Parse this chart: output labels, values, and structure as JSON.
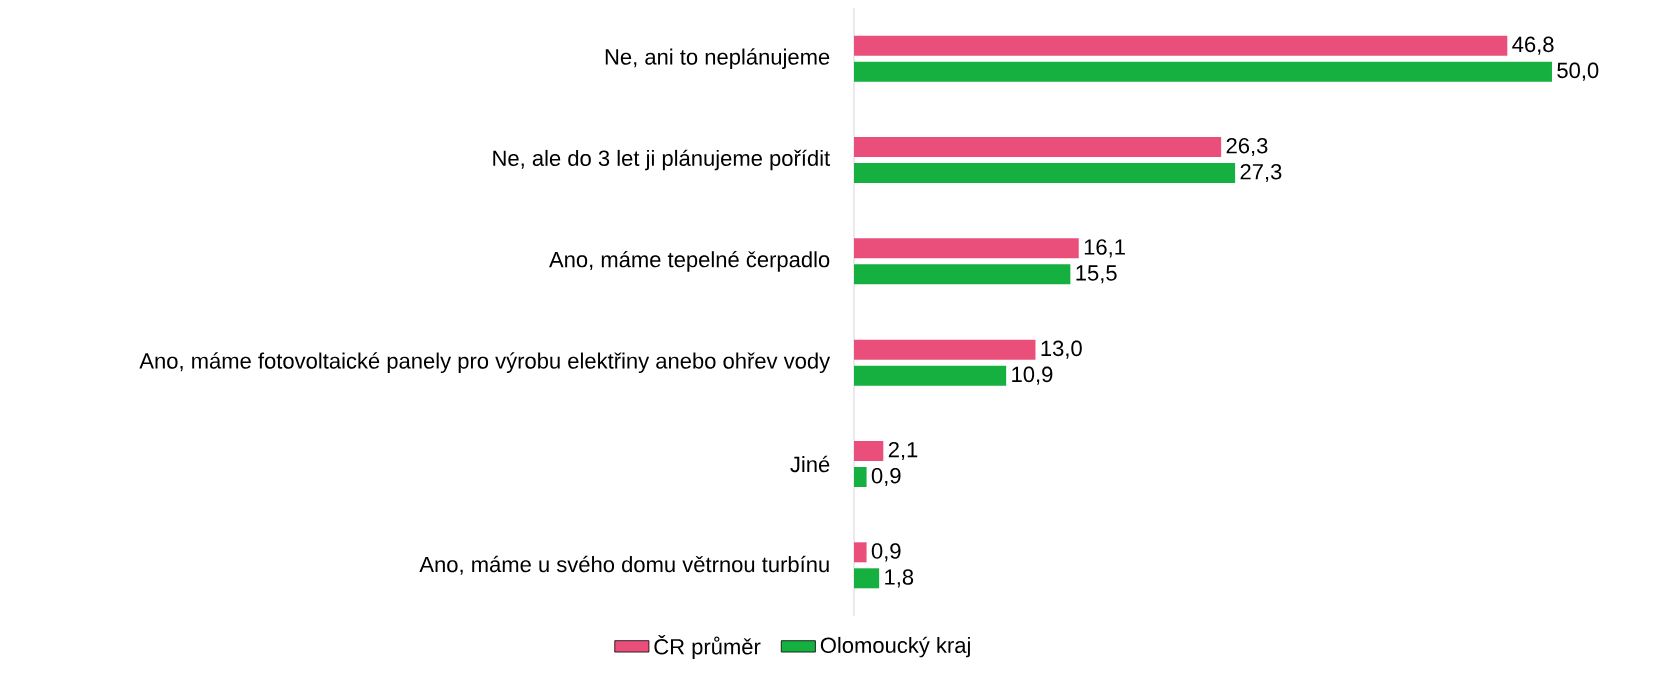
{
  "chart_data": {
    "type": "bar",
    "orientation": "horizontal",
    "categories": [
      "Ne, ani to neplánujeme",
      "Ne, ale do 3 let ji plánujeme pořídit",
      "Ano, máme tepelné čerpadlo",
      "Ano, máme fotovoltaické panely pro výrobu elektřiny anebo ohřev vody",
      "Jiné",
      "Ano, máme u svého domu větrnou turbínu"
    ],
    "series": [
      {
        "name": "ČR průměr",
        "color": "#ea4f7c",
        "values": [
          46.8,
          26.3,
          16.1,
          13.0,
          2.1,
          0.9
        ],
        "value_labels": [
          "46,8",
          "26,3",
          "16,1",
          "13,0",
          "2,1",
          "0,9"
        ]
      },
      {
        "name": "Olomoucký kraj",
        "color": "#15b03f",
        "values": [
          50.0,
          27.3,
          15.5,
          10.9,
          0.9,
          1.8
        ],
        "value_labels": [
          "50,0",
          "27,3",
          "15,5",
          "10,9",
          "0,9",
          "1,8"
        ]
      }
    ],
    "legend": "bottom"
  }
}
